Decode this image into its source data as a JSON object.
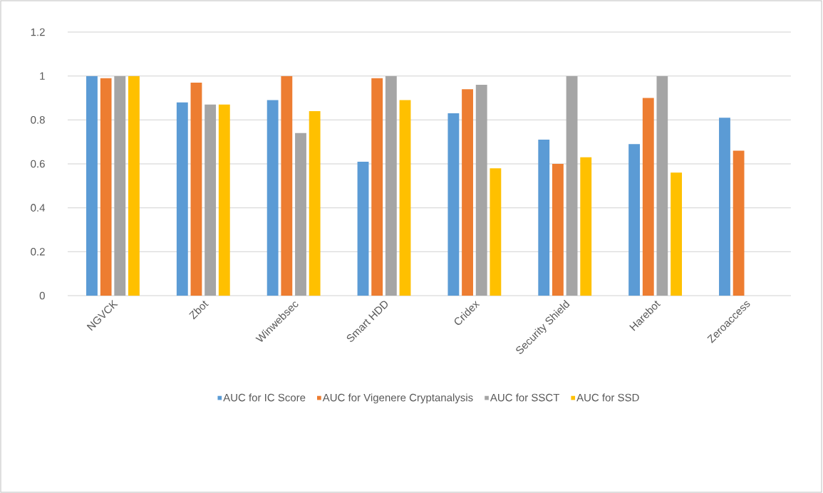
{
  "chart_data": {
    "type": "bar",
    "categories": [
      "NGVCK",
      "Zbot",
      "Winwebsec",
      "Smart HDD",
      "Cridex",
      "Security Shield",
      "Harebot",
      "Zeroaccess"
    ],
    "series": [
      {
        "name": "AUC for IC Score",
        "color": "#5b9bd5",
        "values": [
          1.0,
          0.88,
          0.89,
          0.61,
          0.83,
          0.71,
          0.69,
          0.81
        ]
      },
      {
        "name": "AUC for Vigenere Cryptanalysis",
        "color": "#ed7d31",
        "values": [
          0.99,
          0.97,
          1.0,
          0.99,
          0.94,
          0.6,
          0.9,
          0.66
        ]
      },
      {
        "name": "AUC for SSCT",
        "color": "#a5a5a5",
        "values": [
          1.0,
          0.87,
          0.74,
          1.0,
          0.96,
          1.0,
          1.0,
          null
        ]
      },
      {
        "name": "AUC for SSD",
        "color": "#ffc000",
        "values": [
          1.0,
          0.87,
          0.84,
          0.89,
          0.58,
          0.63,
          0.56,
          null
        ]
      }
    ],
    "ylim": [
      0,
      1.2
    ],
    "yticks": [
      0,
      0.2,
      0.4,
      0.6,
      0.8,
      1,
      1.2
    ],
    "grid": "y",
    "legend": "bottom"
  }
}
